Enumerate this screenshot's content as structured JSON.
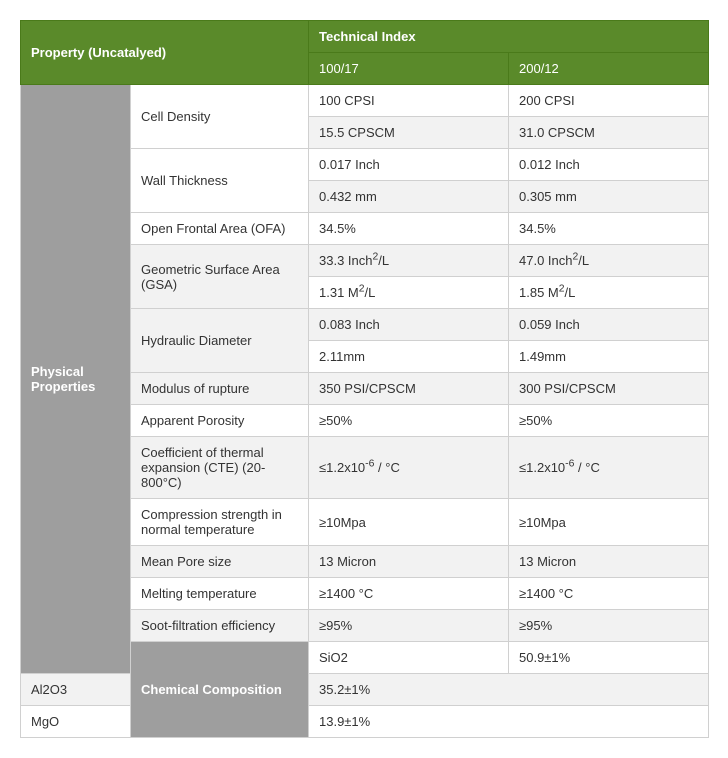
{
  "header": {
    "propertyLabel": "Property (Uncatalyed)",
    "techIndexLabel": "Technical Index",
    "col1": "100/17",
    "col2": "200/12"
  },
  "sections": {
    "physical": "Physical Properties",
    "chemical": "Chemical Composition"
  },
  "props": {
    "cellDensity": {
      "label": "Cell Density",
      "r1c1": "100 CPSI",
      "r1c2": "200 CPSI",
      "r2c1": "15.5 CPSCM",
      "r2c2": "31.0 CPSCM"
    },
    "wallThickness": {
      "label": "Wall Thickness",
      "r1c1": "0.017 Inch",
      "r1c2": "0.012 Inch",
      "r2c1": "0.432 mm",
      "r2c2": "0.305 mm"
    },
    "ofa": {
      "label": "Open Frontal Area (OFA)",
      "c1": "34.5%",
      "c2": "34.5%"
    },
    "gsa": {
      "label": "Geometric Surface Area (GSA)",
      "r1c1_pre": "33.3 Inch",
      "r1c1_post": "/L",
      "r1c2_pre": "47.0 Inch",
      "r1c2_post": "/L",
      "r2c1_pre": "1.31 M",
      "r2c1_post": "/L",
      "r2c2_pre": "1.85 M",
      "r2c2_post": "/L"
    },
    "hydDia": {
      "label": "Hydraulic Diameter",
      "r1c1": "0.083 Inch",
      "r1c2": "0.059 Inch",
      "r2c1": "2.11mm",
      "r2c2": "1.49mm"
    },
    "mor": {
      "label": "Modulus of rupture",
      "c1": "350 PSI/CPSCM",
      "c2": "300 PSI/CPSCM"
    },
    "porosity": {
      "label": "Apparent Porosity",
      "c1": "≥50%",
      "c2": "≥50%"
    },
    "cte": {
      "label": "Coefficient of thermal expansion (CTE) (20-800°C)",
      "c1_pre": "≤1.2x10",
      "c1_post": " / °C",
      "c2_pre": "≤1.2x10",
      "c2_post": " / °C",
      "sup": "-6"
    },
    "compression": {
      "label": "Compression strength in normal temperature",
      "c1": "≥10Mpa",
      "c2": "≥10Mpa"
    },
    "pore": {
      "label": "Mean Pore size",
      "c1": "13 Micron",
      "c2": "13 Micron"
    },
    "melt": {
      "label": "Melting temperature",
      "c1": "≥1400 °C",
      "c2": "≥1400 °C"
    },
    "soot": {
      "label": "Soot-filtration efficiency",
      "c1": "≥95%",
      "c2": "≥95%"
    },
    "sio2": {
      "label": "SiO2",
      "val": "50.9±1%"
    },
    "al2o3": {
      "label": "Al2O3",
      "val": "35.2±1%"
    },
    "mgo": {
      "label": "MgO",
      "val": "13.9±1%"
    }
  }
}
